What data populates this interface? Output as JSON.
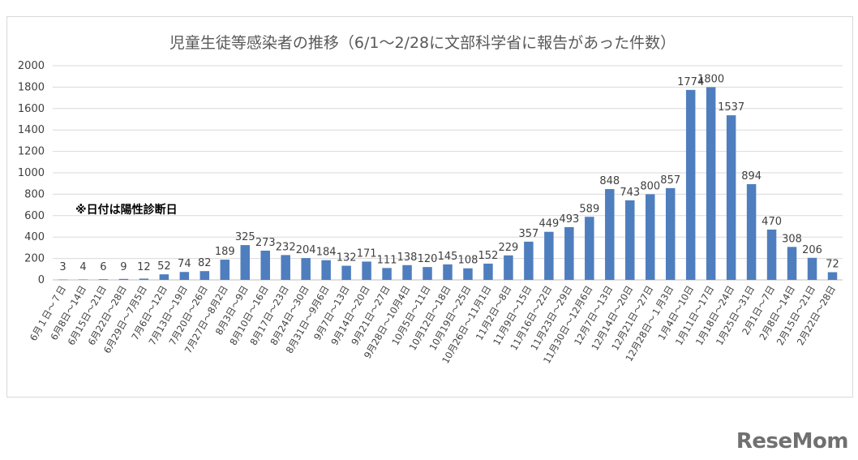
{
  "chart_data": {
    "type": "bar",
    "title": "児童生徒等感染者の推移（6/1～2/28に文部科学省に報告があった件数）",
    "note": "※日付は陽性診断日",
    "xlabel": "",
    "ylabel": "",
    "ylim": [
      0,
      2000
    ],
    "yticks": [
      "0",
      "200",
      "400",
      "600",
      "800",
      "1000",
      "1200",
      "1400",
      "1600",
      "1800",
      "2000"
    ],
    "grid": true,
    "legend": false,
    "bar_color": "#4f7ebf",
    "categories": [
      "6月１日～７日",
      "6月8日～14日",
      "6月15日～21日",
      "6月22日～28日",
      "6月29日～7月5日",
      "7月6日～12日",
      "7月13日～19日",
      "7月20日～26日",
      "7月27日～8月2日",
      "8月3日～9日",
      "8月10日～16日",
      "8月17日～23日",
      "8月24日～30日",
      "8月31日～9月6日",
      "9月7日～13日",
      "9月14日～20日",
      "9月21日～27日",
      "9月28日～10月4日",
      "10月5日～11日",
      "10月12日～18日",
      "10月19日～25日",
      "10月26日～11月1日",
      "11月2日～8日",
      "11月9日～15日",
      "11月16日～22日",
      "11月23日～29日",
      "11月30日～12月6日",
      "12月7日～13日",
      "12月14日～20日",
      "12月21日～27日",
      "12月28日～１月3日",
      "1月4日～10日",
      "1月11日～17日",
      "1月18日～24日",
      "1月25日～31日",
      "2月1日～7日",
      "2月8日～14日",
      "2月15日～21日",
      "2月22日～28日"
    ],
    "values": [
      3,
      4,
      6,
      9,
      12,
      52,
      74,
      82,
      189,
      325,
      273,
      232,
      204,
      184,
      132,
      171,
      111,
      138,
      120,
      145,
      108,
      152,
      229,
      357,
      449,
      493,
      589,
      848,
      743,
      800,
      857,
      1774,
      1800,
      1537,
      894,
      470,
      308,
      206,
      72
    ]
  },
  "branding": {
    "logo_text": "ReseMom"
  }
}
